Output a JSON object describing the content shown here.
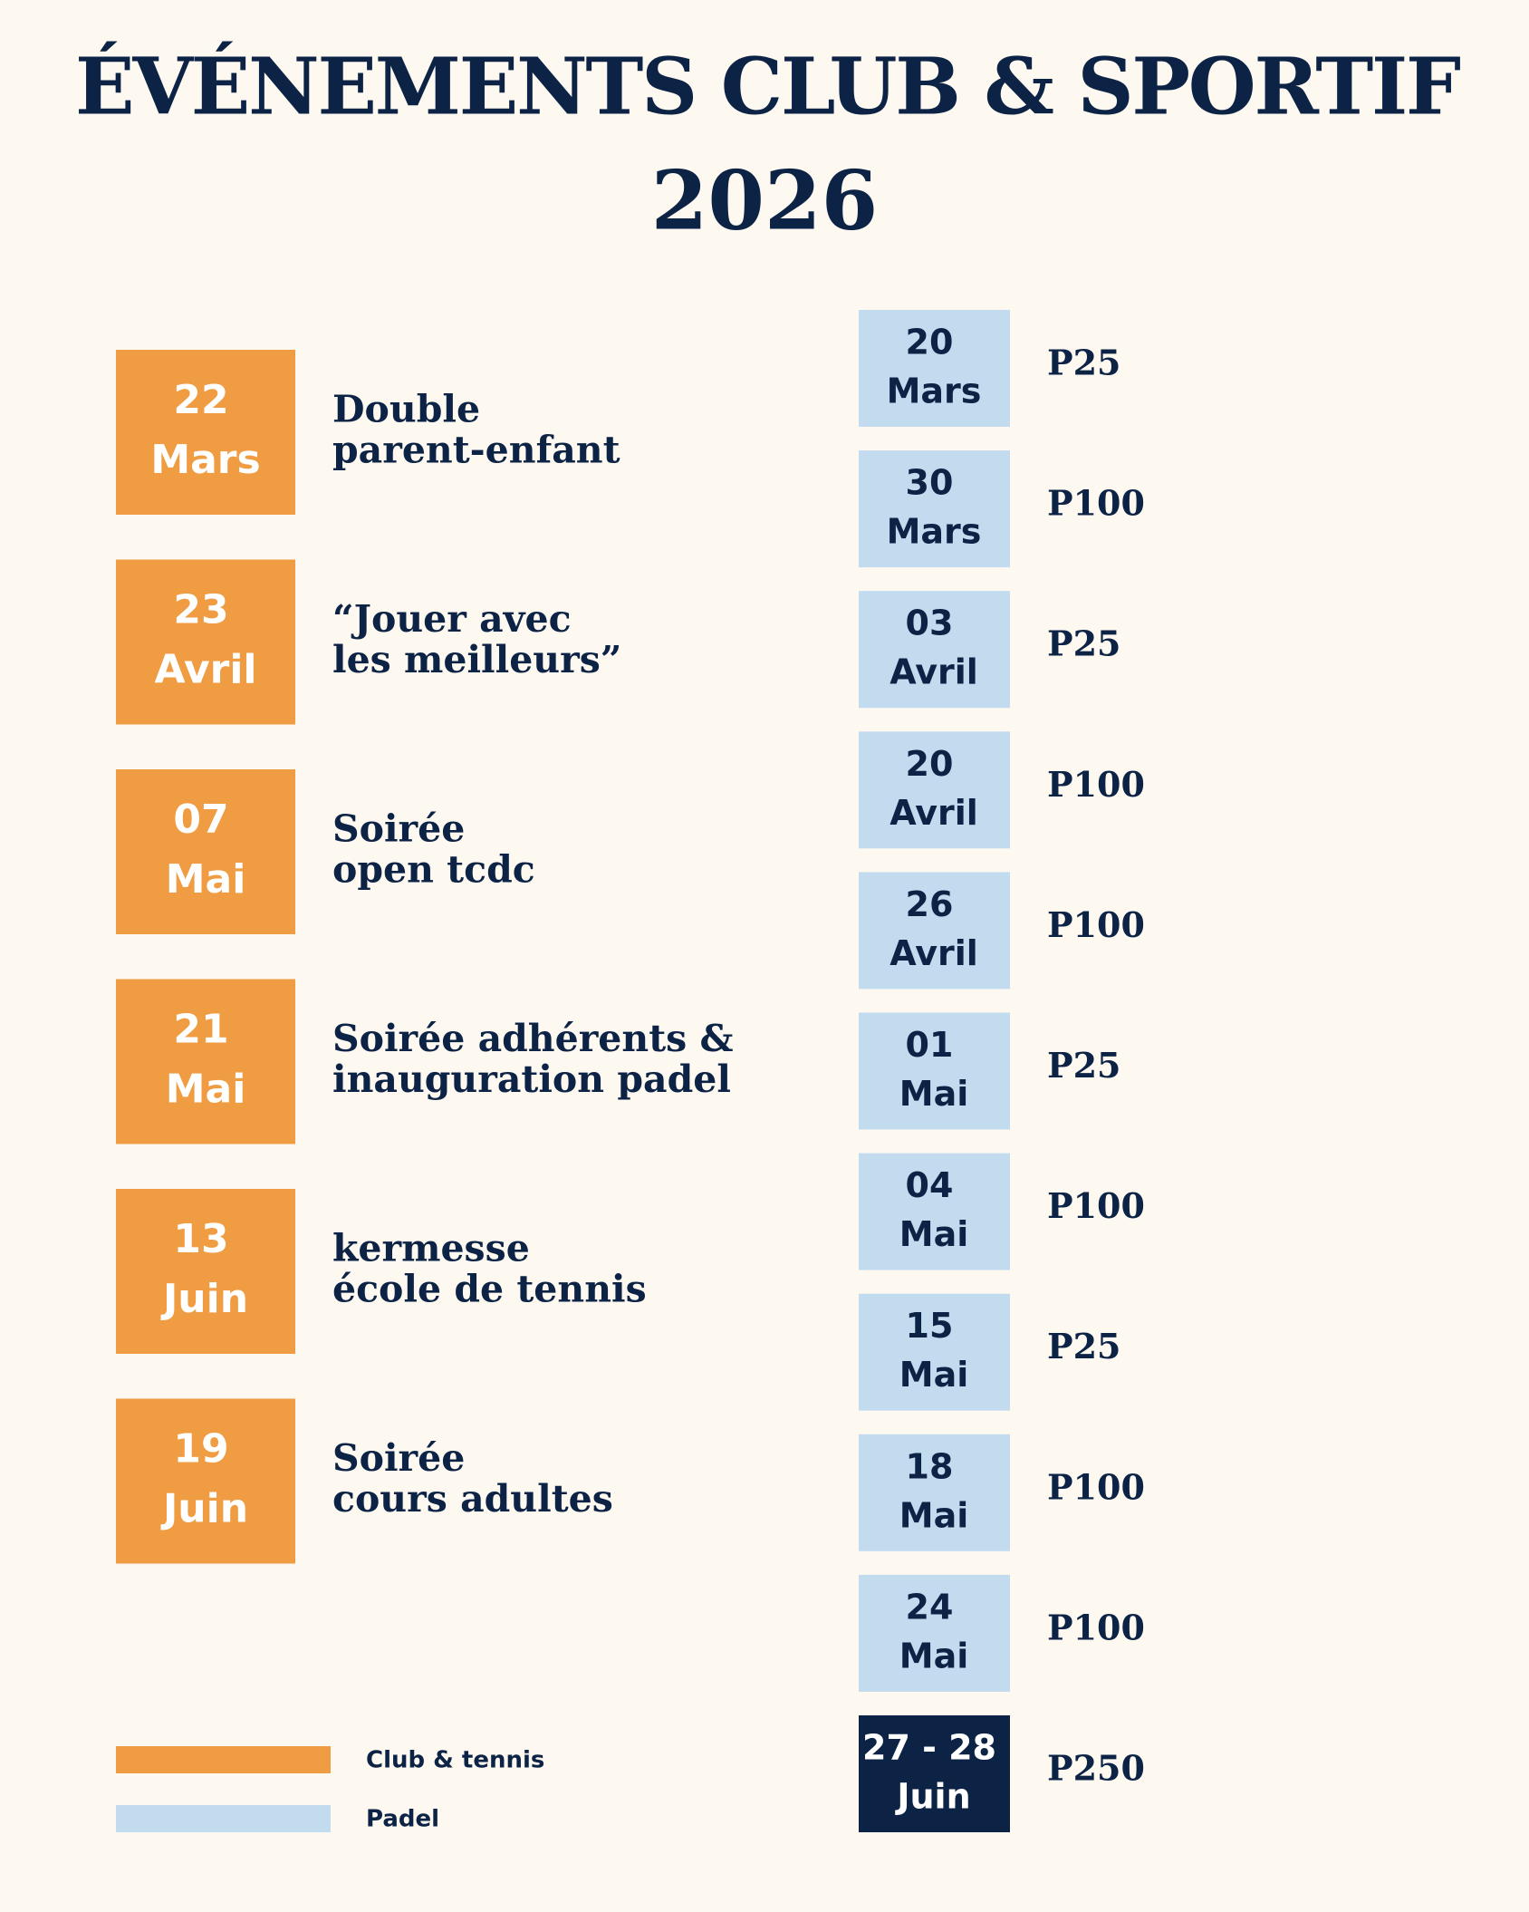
{
  "header": {
    "title": "ÉVÉNEMENTS CLUB & SPORTIF",
    "year": "2026"
  },
  "club_events": [
    {
      "day": "22",
      "month": "Mars",
      "lines": [
        "Double",
        "parent-enfant"
      ]
    },
    {
      "day": "23",
      "month": "Avril",
      "lines": [
        "“Jouer avec",
        "les meilleurs”"
      ]
    },
    {
      "day": "07",
      "month": "Mai",
      "lines": [
        "Soirée",
        "open tcdc"
      ]
    },
    {
      "day": "21",
      "month": "Mai",
      "lines": [
        "Soirée adhérents &",
        "inauguration padel"
      ]
    },
    {
      "day": "13",
      "month": "Juin",
      "lines": [
        "kermesse",
        "école de tennis"
      ]
    },
    {
      "day": "19",
      "month": "Juin",
      "lines": [
        "Soirée",
        "cours adultes"
      ]
    }
  ],
  "padel_events": [
    {
      "day": "20",
      "month": "Mars",
      "level": "P25"
    },
    {
      "day": "30",
      "month": "Mars",
      "level": "P100"
    },
    {
      "day": "03",
      "month": "Avril",
      "level": "P25"
    },
    {
      "day": "20",
      "month": "Avril",
      "level": "P100"
    },
    {
      "day": "26",
      "month": "Avril",
      "level": "P100"
    },
    {
      "day": "01",
      "month": "Mai",
      "level": "P25"
    },
    {
      "day": "04",
      "month": "Mai",
      "level": "P100"
    },
    {
      "day": "15",
      "month": "Mai",
      "level": "P25"
    },
    {
      "day": "18",
      "month": "Mai",
      "level": "P100"
    },
    {
      "day": "24",
      "month": "Mai",
      "level": "P100"
    },
    {
      "day": "27 - 28",
      "month": "Juin",
      "level": "P250"
    }
  ],
  "legend": [
    {
      "label": "Club & tennis",
      "color": "#f09c42"
    },
    {
      "label": "Padel",
      "color": "#c2dbef"
    }
  ]
}
